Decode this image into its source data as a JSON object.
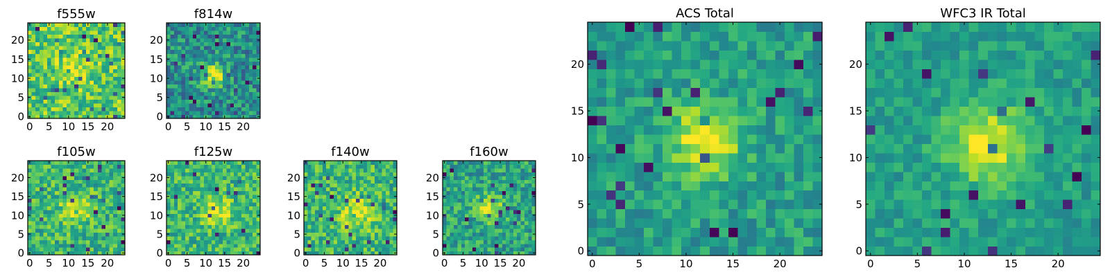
{
  "figure": {
    "colormap": "viridis"
  },
  "chart_data": [
    {
      "type": "heatmap",
      "title": "f555w",
      "xlim": [
        0,
        24
      ],
      "ylim": [
        0,
        24
      ],
      "xticks": [
        "0",
        "5",
        "10",
        "15",
        "20"
      ],
      "yticks": [
        "0",
        "5",
        "10",
        "15",
        "20"
      ],
      "center": [
        12,
        12
      ],
      "sigma": 3.0,
      "peak": 0.22,
      "base": 0.74,
      "noise": 0.22,
      "seed": 11
    },
    {
      "type": "heatmap",
      "title": "f814w",
      "xlim": [
        0,
        24
      ],
      "ylim": [
        0,
        24
      ],
      "xticks": [
        "0",
        "5",
        "10",
        "15",
        "20"
      ],
      "yticks": [
        "0",
        "5",
        "10",
        "15",
        "20"
      ],
      "center": [
        12,
        11
      ],
      "sigma": 2.2,
      "peak": 0.45,
      "base": 0.5,
      "noise": 0.22,
      "seed": 23
    },
    {
      "type": "heatmap",
      "title": "f105w",
      "xlim": [
        0,
        24
      ],
      "ylim": [
        0,
        24
      ],
      "xticks": [
        "0",
        "5",
        "10",
        "15",
        "20"
      ],
      "yticks": [
        "0",
        "5",
        "10",
        "15",
        "20"
      ],
      "center": [
        12,
        12
      ],
      "sigma": 2.6,
      "peak": 0.32,
      "base": 0.66,
      "noise": 0.2,
      "seed": 37
    },
    {
      "type": "heatmap",
      "title": "f125w",
      "xlim": [
        0,
        24
      ],
      "ylim": [
        0,
        24
      ],
      "xticks": [
        "0",
        "5",
        "10",
        "15",
        "20"
      ],
      "yticks": [
        "0",
        "5",
        "10",
        "15",
        "20"
      ],
      "center": [
        13,
        11
      ],
      "sigma": 2.6,
      "peak": 0.3,
      "base": 0.66,
      "noise": 0.2,
      "seed": 41
    },
    {
      "type": "heatmap",
      "title": "f140w",
      "xlim": [
        0,
        24
      ],
      "ylim": [
        0,
        24
      ],
      "xticks": [
        "0",
        "5",
        "10",
        "15",
        "20"
      ],
      "yticks": [
        "0",
        "5",
        "10",
        "15",
        "20"
      ],
      "center": [
        14,
        11
      ],
      "sigma": 3.2,
      "peak": 0.3,
      "base": 0.66,
      "noise": 0.2,
      "seed": 53
    },
    {
      "type": "heatmap",
      "title": "f160w",
      "xlim": [
        0,
        24
      ],
      "ylim": [
        0,
        24
      ],
      "xticks": [
        "0",
        "5",
        "10",
        "15",
        "20"
      ],
      "yticks": [
        "0",
        "5",
        "10",
        "15",
        "20"
      ],
      "center": [
        12,
        12
      ],
      "sigma": 2.4,
      "peak": 0.38,
      "base": 0.58,
      "noise": 0.2,
      "seed": 67
    },
    {
      "type": "heatmap",
      "title": "ACS Total",
      "xlim": [
        0,
        24
      ],
      "ylim": [
        0,
        24
      ],
      "xticks": [
        "0",
        "5",
        "10",
        "15",
        "20"
      ],
      "yticks": [
        "0",
        "5",
        "10",
        "15",
        "20"
      ],
      "center": [
        12,
        12
      ],
      "sigma": 2.6,
      "peak": 0.45,
      "base": 0.56,
      "noise": 0.15,
      "seed": 79
    },
    {
      "type": "heatmap",
      "title": "WFC3 IR Total",
      "xlim": [
        0,
        24
      ],
      "ylim": [
        0,
        24
      ],
      "xticks": [
        "0",
        "5",
        "10",
        "15",
        "20"
      ],
      "yticks": [
        "0",
        "5",
        "10",
        "15",
        "20"
      ],
      "center": [
        12.5,
        11.5
      ],
      "sigma": 3.0,
      "peak": 0.42,
      "base": 0.56,
      "noise": 0.12,
      "seed": 97
    }
  ]
}
